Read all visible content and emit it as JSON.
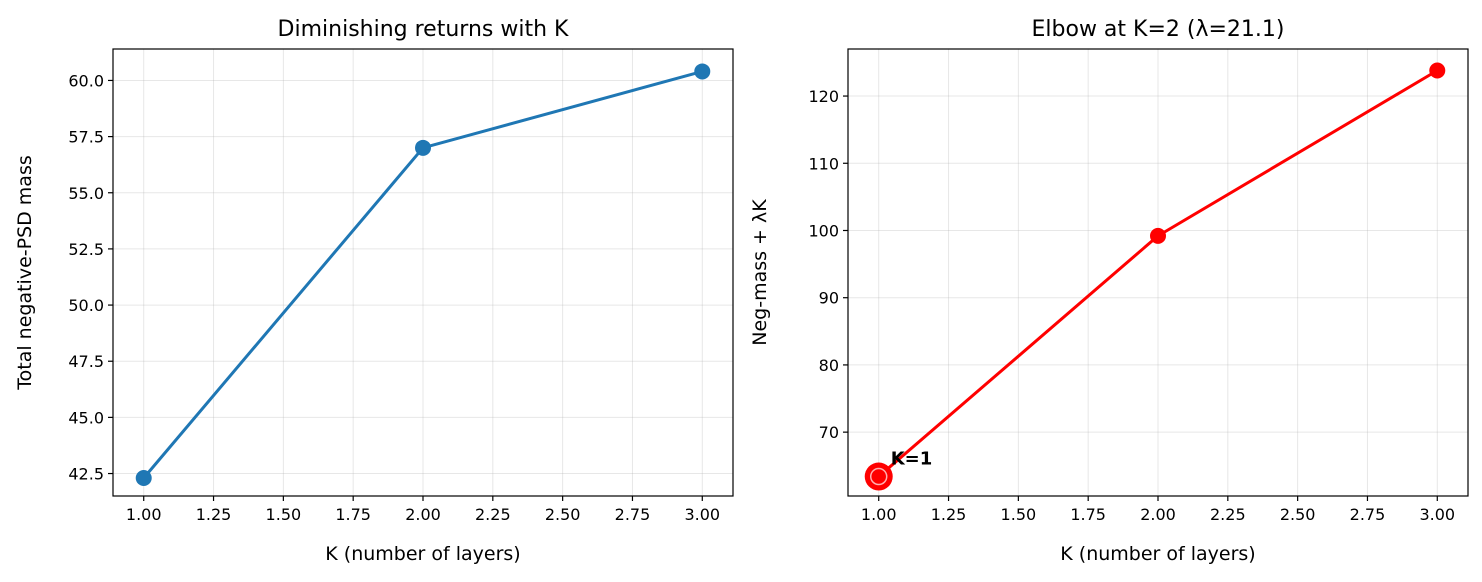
{
  "chart_data": [
    {
      "type": "line",
      "title": "Diminishing returns with K",
      "xlabel": "K (number of layers)",
      "ylabel": "Total negative-PSD mass",
      "x": [
        1,
        2,
        3
      ],
      "series": [
        {
          "values": [
            42.3,
            57.0,
            60.4
          ],
          "color": "#1f77b4"
        }
      ],
      "xlim": [
        0.89,
        3.11
      ],
      "ylim": [
        41.5,
        61.4
      ],
      "xticks": [
        1.0,
        1.25,
        1.5,
        1.75,
        2.0,
        2.25,
        2.5,
        2.75,
        3.0
      ],
      "xtick_labels": [
        "1.00",
        "1.25",
        "1.50",
        "1.75",
        "2.00",
        "2.25",
        "2.50",
        "2.75",
        "3.00"
      ],
      "yticks": [
        42.5,
        45.0,
        47.5,
        50.0,
        52.5,
        55.0,
        57.5,
        60.0
      ],
      "ytick_labels": [
        "42.5",
        "45.0",
        "47.5",
        "50.0",
        "52.5",
        "55.0",
        "57.5",
        "60.0"
      ],
      "grid": true
    },
    {
      "type": "line",
      "title": "Elbow at K=2 (λ=21.1)",
      "xlabel": "K (number of layers)",
      "ylabel": "Neg-mass + λK",
      "x": [
        1,
        2,
        3
      ],
      "series": [
        {
          "values": [
            63.4,
            99.2,
            123.8
          ],
          "color": "#ff0000"
        }
      ],
      "highlight": {
        "x": 1,
        "y": 63.4,
        "label": "K=1"
      },
      "xlim": [
        0.89,
        3.11
      ],
      "ylim": [
        60.5,
        127.0
      ],
      "xticks": [
        1.0,
        1.25,
        1.5,
        1.75,
        2.0,
        2.25,
        2.5,
        2.75,
        3.0
      ],
      "xtick_labels": [
        "1.00",
        "1.25",
        "1.50",
        "1.75",
        "2.00",
        "2.25",
        "2.50",
        "2.75",
        "3.00"
      ],
      "yticks": [
        70,
        80,
        90,
        100,
        110,
        120
      ],
      "ytick_labels": [
        "70",
        "80",
        "90",
        "100",
        "110",
        "120"
      ],
      "grid": true
    }
  ]
}
